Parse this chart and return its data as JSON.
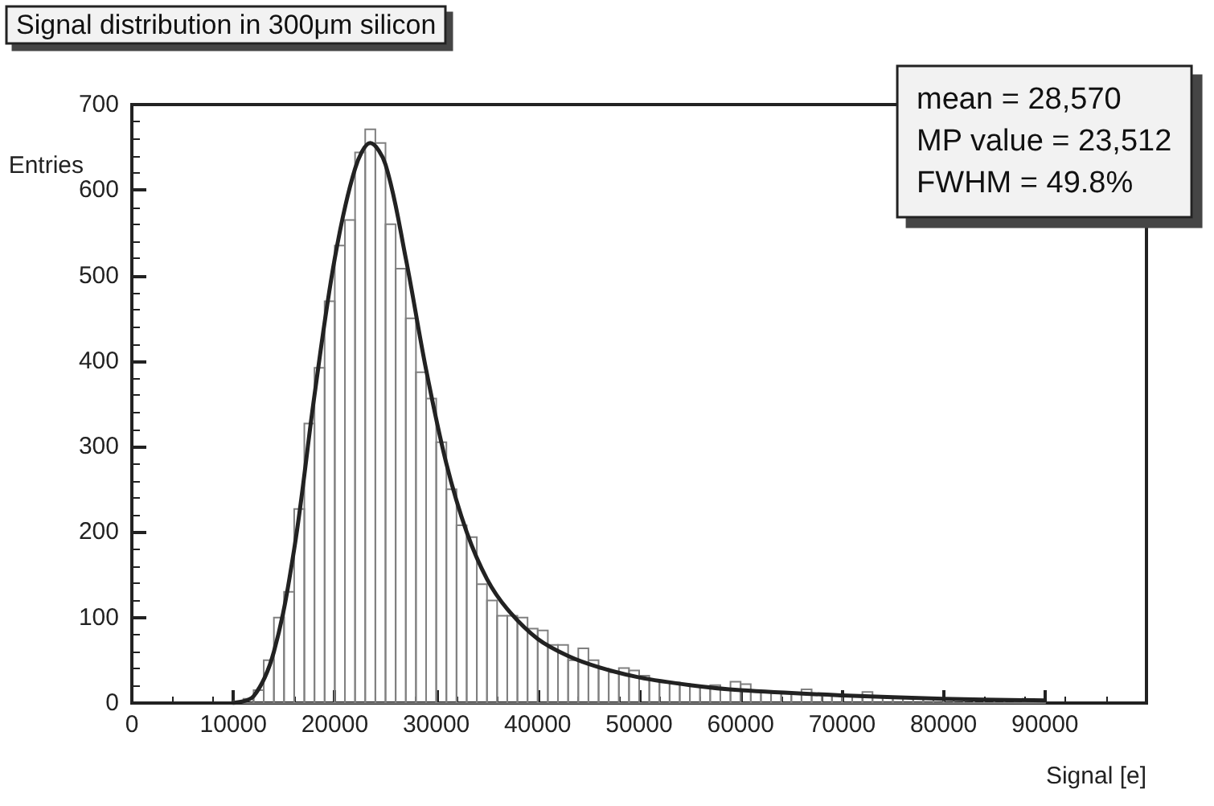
{
  "chart_data": {
    "type": "histogram",
    "title": "Signal distribution in 300μm silicon",
    "xlabel": "Signal [e]",
    "ylabel": "Entries",
    "annotations": [
      "mean = 28,570",
      "MP value = 23,512",
      "FWHM = 49.8%"
    ],
    "series": [
      {
        "type": "histogram",
        "color": "#808080",
        "bins": [
          10000,
          11000,
          12000,
          13000,
          14000,
          15000,
          16000,
          17000,
          18000,
          19000,
          20000,
          21000,
          22000,
          23000,
          24000,
          25000,
          26000,
          27000,
          28000,
          29000,
          30000,
          31000,
          32000,
          33000,
          34000,
          35000,
          36000,
          37000,
          38000,
          39000,
          40000,
          41000,
          42000,
          43000,
          44000,
          45000,
          46000,
          47000,
          48000,
          49000,
          50000,
          51000,
          52000,
          53000,
          54000,
          55000,
          56000,
          57000,
          58000,
          59000,
          60000,
          61000,
          62000,
          63000,
          64000,
          65000,
          66000,
          67000,
          68000,
          69000,
          70000,
          71000,
          72000,
          73000,
          74000,
          75000,
          76000,
          77000,
          78000,
          79000,
          80000,
          81000,
          82000,
          83000,
          84000,
          85000,
          86000,
          87000,
          88000,
          89000,
          90000
        ],
        "values": [
          2,
          5,
          15,
          50,
          100,
          130,
          227,
          327,
          392,
          470,
          535,
          565,
          644,
          671,
          655,
          560,
          508,
          450,
          387,
          356,
          305,
          250,
          208,
          194,
          139,
          120,
          102,
          102,
          100,
          87,
          85,
          68,
          68,
          50,
          64,
          50,
          40,
          36,
          41,
          38,
          32,
          27,
          25,
          24,
          22,
          20,
          18,
          21,
          16,
          25,
          22,
          15,
          14,
          12,
          11,
          12,
          16,
          10,
          9,
          10,
          8,
          9,
          13,
          8,
          7,
          7,
          6,
          6,
          5,
          5,
          5,
          4,
          4,
          4,
          3,
          3,
          3,
          2,
          2,
          2
        ]
      },
      {
        "type": "line",
        "color": "#222222",
        "x": [
          10000,
          12000,
          14000,
          16000,
          18000,
          20000,
          22000,
          23500,
          25000,
          27000,
          29000,
          31000,
          33000,
          35000,
          37000,
          40000,
          43000,
          46000,
          50000,
          55000,
          60000,
          70000,
          80000,
          90000
        ],
        "values": [
          0,
          8,
          60,
          180,
          360,
          520,
          625,
          655,
          630,
          520,
          390,
          280,
          200,
          145,
          110,
          75,
          55,
          42,
          30,
          21,
          15,
          9,
          5,
          3
        ]
      }
    ],
    "xlim": [
      0,
      100000
    ],
    "xticks": [
      0,
      10000,
      20000,
      30000,
      40000,
      50000,
      60000,
      70000,
      80000,
      90000
    ],
    "ylim": [
      0,
      700
    ],
    "yticks": [
      0,
      100,
      200,
      300,
      400,
      500,
      600,
      700
    ],
    "grid": false,
    "marker": "none",
    "line_style": "solid"
  }
}
